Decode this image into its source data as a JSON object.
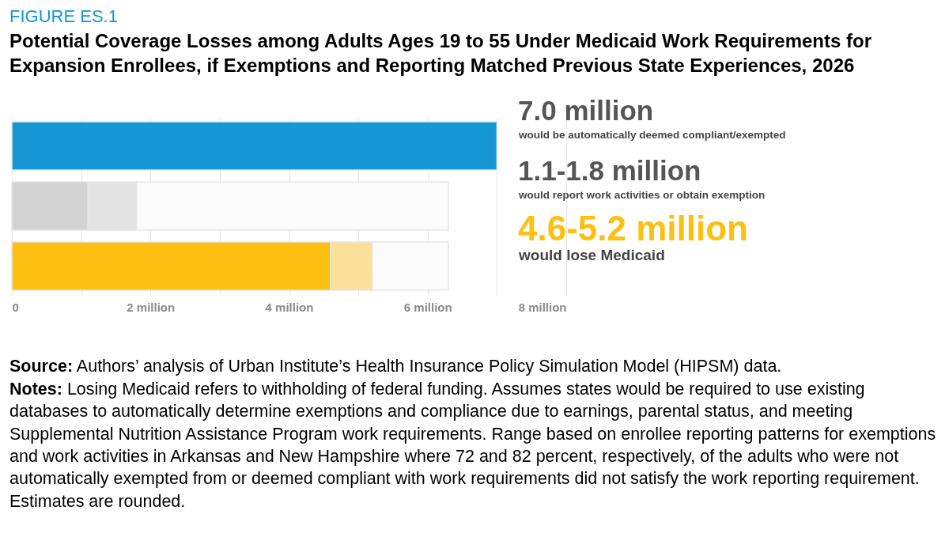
{
  "chart_data": {
    "type": "bar",
    "orientation": "horizontal",
    "stacked": true,
    "subtitle": "FIGURE ES.1",
    "title": "Potential Coverage Losses among Adults Ages 19 to 55 Under Medicaid Work Requirements for Expansion Enrollees, if Exemptions and Reporting Matched Previous State Experiences, 2026",
    "categories": [
      "would be automatically deemed compliant/exempted",
      "would report work activities or obtain exemption",
      "would lose Medicaid"
    ],
    "series": [
      {
        "color": "#1696d2",
        "values": [
          7.0,
          null,
          null
        ],
        "value_labels": [
          "7.0 million",
          null,
          null
        ]
      },
      {
        "color": "#d2d2d2",
        "values": [
          null,
          1.1,
          null
        ]
      },
      {
        "color": "#e3e3e3",
        "values": [
          null,
          0.7,
          null
        ]
      },
      {
        "color": "#fdbf11",
        "values": [
          null,
          null,
          4.6
        ]
      },
      {
        "color": "#fbe09b",
        "values": [
          null,
          null,
          0.6
        ]
      },
      {
        "color": "#fbfbfb",
        "values": [
          null,
          4.5,
          1.1
        ],
        "value_labels": [
          null,
          "1.1-1.8 million",
          "4.6-5.2 million"
        ]
      }
    ],
    "xlim": [
      0,
      8
    ],
    "xticks": [
      0,
      {
        "value": 1,
        "label": null
      },
      {
        "value": 2,
        "label": "2 million"
      },
      {
        "value": 3,
        "label": null
      },
      {
        "value": 4,
        "label": "4 million"
      },
      {
        "value": 5,
        "label": null
      },
      {
        "value": 6,
        "label": "6 million"
      },
      {
        "value": 7,
        "label": null
      },
      {
        "value": 8,
        "label": "8 million"
      }
    ],
    "grid": "x",
    "annotations": [
      "Source: Authors’ analysis of Urban Institute’s Health Insurance Policy Simulation Model (HIPSM) data.",
      "Notes: Losing Medicaid refers to withholding of federal funding. Assumes states would be required to use existing databases to automatically determine exemptions and compliance due to earnings, parental status, and meeting Supplemental Nutrition Assistance Program work requirements. Range based on enrollee reporting patterns for exemptions and work activities in Arkansas and New Hampshire where 72 and 82 percent, respectively, of the adults who were not automatically exempted from or deemed compliant with work requirements did not satisfy the work reporting requirement. Estimates are rounded."
    ]
  }
}
